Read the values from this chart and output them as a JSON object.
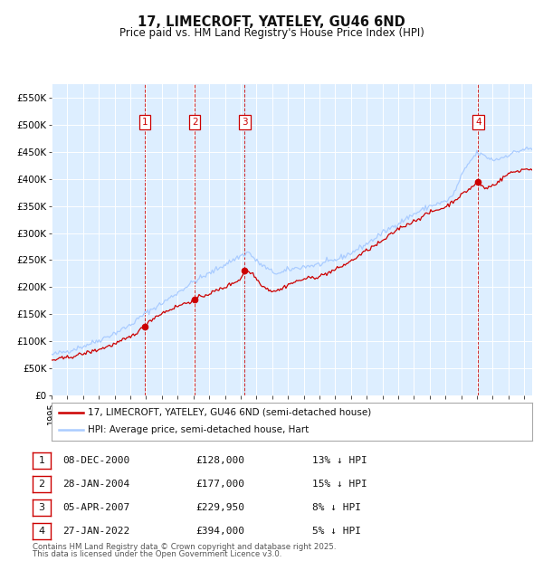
{
  "title": "17, LIMECROFT, YATELEY, GU46 6ND",
  "subtitle": "Price paid vs. HM Land Registry's House Price Index (HPI)",
  "legend_line1": "17, LIMECROFT, YATELEY, GU46 6ND (semi-detached house)",
  "legend_line2": "HPI: Average price, semi-detached house, Hart",
  "ylabel_ticks": [
    "£0",
    "£50K",
    "£100K",
    "£150K",
    "£200K",
    "£250K",
    "£300K",
    "£350K",
    "£400K",
    "£450K",
    "£500K",
    "£550K"
  ],
  "ytick_values": [
    0,
    50000,
    100000,
    150000,
    200000,
    250000,
    300000,
    350000,
    400000,
    450000,
    500000,
    550000
  ],
  "ylim": [
    0,
    575000
  ],
  "sale_color": "#cc0000",
  "hpi_color": "#aaccff",
  "background_color": "#ffffff",
  "plot_bg_color": "#ddeeff",
  "grid_color": "#ffffff",
  "transactions": [
    {
      "num": 1,
      "date": "08-DEC-2000",
      "price": 128000,
      "pct": "13%",
      "year": 2000.93
    },
    {
      "num": 2,
      "date": "28-JAN-2004",
      "price": 177000,
      "pct": "15%",
      "year": 2004.08
    },
    {
      "num": 3,
      "date": "05-APR-2007",
      "price": 229950,
      "pct": "8%",
      "year": 2007.26
    },
    {
      "num": 4,
      "date": "27-JAN-2022",
      "price": 394000,
      "pct": "5%",
      "year": 2022.08
    }
  ],
  "footnote1": "Contains HM Land Registry data © Crown copyright and database right 2025.",
  "footnote2": "This data is licensed under the Open Government Licence v3.0.",
  "xmin": 1995.0,
  "xmax": 2025.5
}
